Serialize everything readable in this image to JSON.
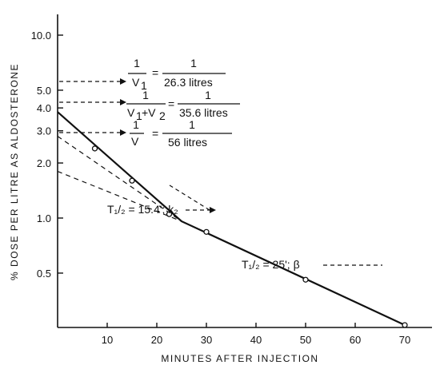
{
  "chart_data": {
    "type": "line",
    "xlabel": "MINUTES AFTER INJECTION",
    "ylabel": "% DOSE PER LITRE AS ALDOSTERONE",
    "y_scale": "log",
    "xlim": [
      0,
      70
    ],
    "ylim": [
      0.1,
      10
    ],
    "x_ticks": [
      "10",
      "20",
      "30",
      "40",
      "50",
      "60",
      "70"
    ],
    "x_tick_values": [
      10,
      20,
      30,
      40,
      50,
      60,
      70
    ],
    "y_ticks": [
      "10.0",
      "5.0",
      "4.0",
      "3.0",
      "2.0",
      "1.0",
      "0.5"
    ],
    "y_tick_values": [
      10,
      5,
      4,
      3,
      2,
      1,
      0.5
    ],
    "points": [
      {
        "x": 7.5,
        "y": 2.4
      },
      {
        "x": 15,
        "y": 1.6
      },
      {
        "x": 22.5,
        "y": 1.05
      },
      {
        "x": 30,
        "y": 0.84
      },
      {
        "x": 50,
        "y": 0.46
      },
      {
        "x": 70,
        "y": 0.26
      }
    ],
    "fit_line": [
      {
        "x": 0,
        "y": 3.8
      },
      {
        "x": 25,
        "y": 0.96
      },
      {
        "x": 70,
        "y": 0.26
      }
    ],
    "extrapolations": [
      {
        "from": {
          "x": 0,
          "y": 2.8
        },
        "to": {
          "x": 25,
          "y": 0.96
        }
      },
      {
        "from": {
          "x": 0,
          "y": 1.8
        },
        "to": {
          "x": 25,
          "y": 0.96
        }
      }
    ],
    "annotations": {
      "v1": {
        "num": "1",
        "den": "V",
        "den_sub": "1",
        "eq": "=",
        "rhs_num": "1",
        "rhs_den": "26.3 litres",
        "y": 3.8
      },
      "v12": {
        "num": "1",
        "den": "V",
        "den_sub1": "1",
        "plus": "+V",
        "den_sub2": "2",
        "eq": "=",
        "rhs_num": "1",
        "rhs_den": "35.6 litres",
        "y": 2.8
      },
      "v": {
        "num": "1",
        "den": "V",
        "eq": "=",
        "rhs_num": "1",
        "rhs_den": "56 litres",
        "y": 1.8
      },
      "k2": {
        "text": "Τ₁/₂ = 15.4'; k₂"
      },
      "beta": {
        "text": "Τ₁/₂ = 25'; β"
      }
    }
  }
}
